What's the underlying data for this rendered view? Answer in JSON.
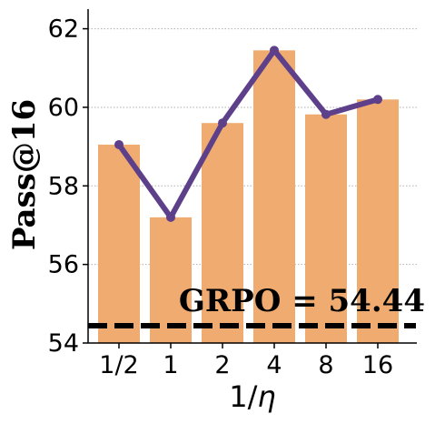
{
  "chart_data": {
    "type": "bar",
    "categories": [
      "1/2",
      "1",
      "2",
      "4",
      "8",
      "16"
    ],
    "values": [
      59.05,
      57.2,
      59.6,
      61.45,
      59.82,
      60.2
    ],
    "line_values": [
      59.05,
      57.2,
      59.6,
      61.45,
      59.82,
      60.2
    ],
    "ylabel": "Pass@16",
    "xlabel_prefix": "1/",
    "xlabel_symbol": "η",
    "ylim": [
      54,
      62.5
    ],
    "yticks": [
      54,
      56,
      58,
      60,
      62
    ],
    "grid": "horizontal dotted",
    "baseline": {
      "label": "GRPO = 54.44",
      "value": 54.44
    },
    "colors": {
      "bar": "#f0ac70",
      "line": "#5d3f8a",
      "baseline": "#000000",
      "grid": "#b0b0b0"
    }
  }
}
